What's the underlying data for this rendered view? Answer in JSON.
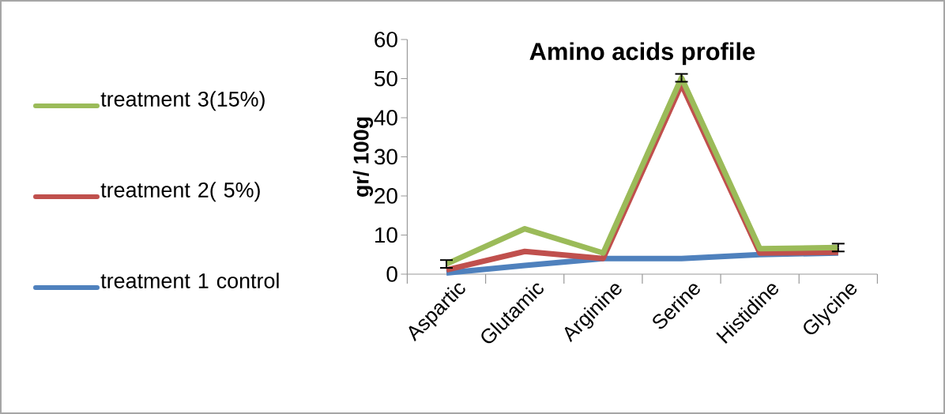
{
  "chart_data": {
    "type": "line",
    "title": "Amino acids profile",
    "ylabel": "gr/ 100g",
    "categories": [
      "Aspartic",
      "Glutamic",
      "Arginine",
      "Serine",
      "Histidine",
      "Glycine"
    ],
    "series": [
      {
        "name": "treatment 1 control",
        "color": "#4f81bd",
        "values": [
          0.3,
          2.2,
          4.0,
          4.0,
          5.0,
          5.4
        ]
      },
      {
        "name": "treatment 2( 5%)",
        "color": "#c0504d",
        "values": [
          1.1,
          5.8,
          4.0,
          48.5,
          5.4,
          5.6
        ]
      },
      {
        "name": "treatment 3(15%)",
        "color": "#9bbb59",
        "values": [
          2.6,
          11.6,
          5.4,
          50.2,
          6.5,
          6.8
        ],
        "errors": [
          1,
          null,
          null,
          1,
          null,
          1
        ]
      }
    ],
    "ylim": [
      0,
      60
    ],
    "yticks": [
      0,
      10,
      20,
      30,
      40,
      50,
      60
    ],
    "grid": false,
    "legend": "left",
    "marker": "none",
    "line_style": "solid"
  }
}
